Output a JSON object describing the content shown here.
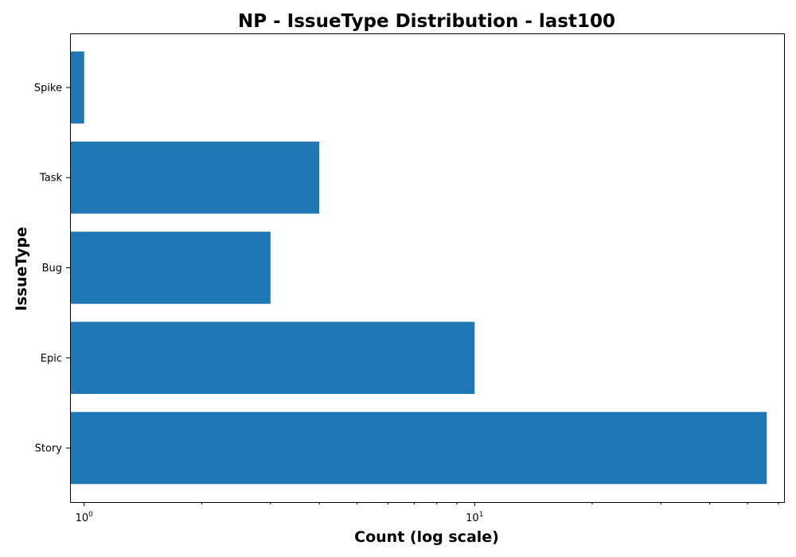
{
  "chart_data": {
    "type": "bar",
    "orientation": "horizontal",
    "title": "NP - IssueType Distribution - last100",
    "xlabel": "Count (log scale)",
    "ylabel": "IssueType",
    "x_scale": "log",
    "x_base": "10",
    "xlim": [
      0.92,
      62
    ],
    "categories": [
      "Story",
      "Epic",
      "Bug",
      "Task",
      "Spike"
    ],
    "values": [
      56,
      10,
      3,
      4,
      1
    ],
    "x_ticks": [
      {
        "value": 1,
        "base": "10",
        "exp": "0"
      },
      {
        "value": 10,
        "base": "10",
        "exp": "1"
      }
    ],
    "bar_color": "#1f77b4",
    "grid": false,
    "legend": "none"
  }
}
